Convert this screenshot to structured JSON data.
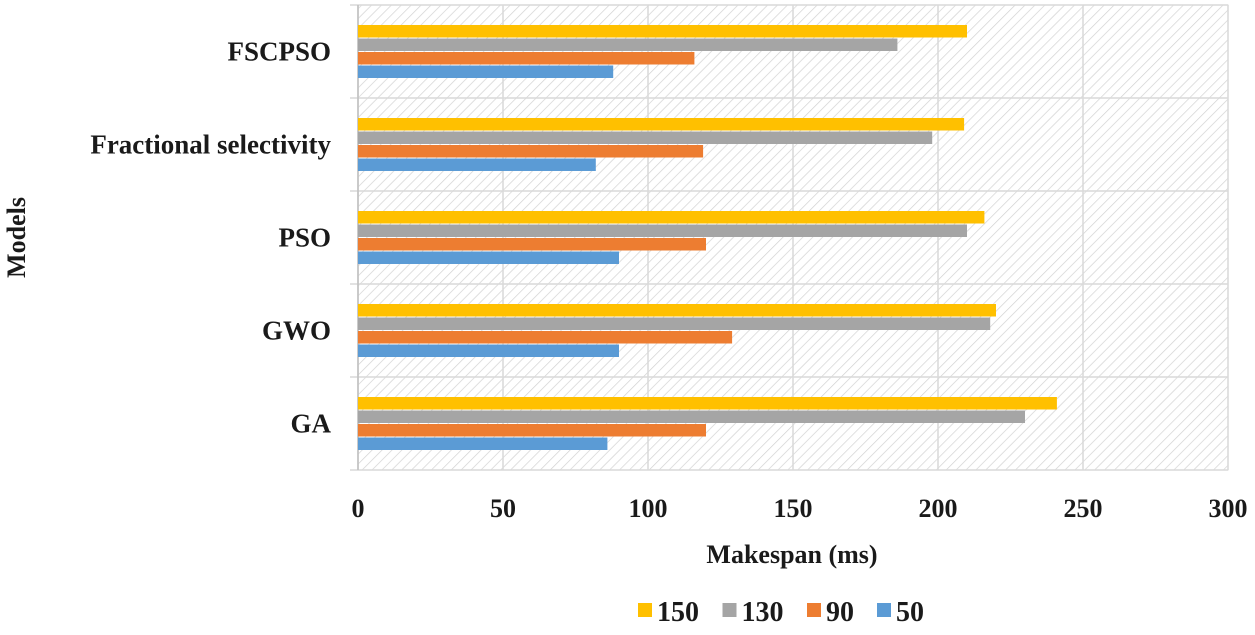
{
  "chart_data": {
    "type": "bar",
    "orientation": "horizontal",
    "categories": [
      "FSCPSO",
      "Fractional selectivity",
      "PSO",
      "GWO",
      "GA"
    ],
    "series": [
      {
        "name": "150",
        "color": "#FFC000",
        "values": [
          210,
          209,
          216,
          220,
          241
        ]
      },
      {
        "name": "130",
        "color": "#A5A5A5",
        "values": [
          186,
          198,
          210,
          218,
          230
        ]
      },
      {
        "name": "90",
        "color": "#ED7D31",
        "values": [
          116,
          119,
          120,
          129,
          120
        ]
      },
      {
        "name": "50",
        "color": "#5B9BD5",
        "values": [
          88,
          82,
          90,
          90,
          86
        ]
      }
    ],
    "xlabel": "Makespan (ms)",
    "ylabel": "Models",
    "xlim": [
      0,
      300
    ],
    "xticks": [
      0,
      50,
      100,
      150,
      200,
      250,
      300
    ],
    "grid": true,
    "plot_background": "diagonal-hatch",
    "legend_position": "bottom"
  }
}
